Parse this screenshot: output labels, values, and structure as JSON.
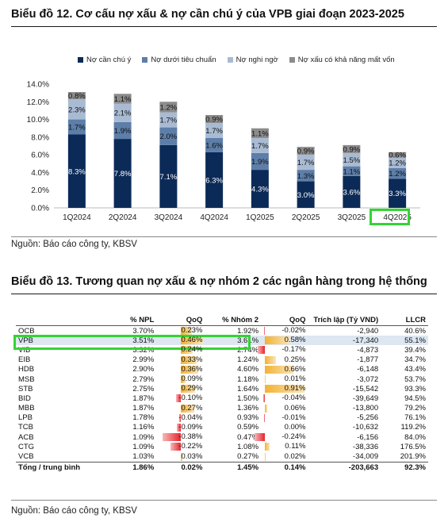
{
  "chart12": {
    "title": "Biểu đồ 12. Cơ cấu nợ xấu & nợ cần chú ý của VPB giai đoạn 2023-2025",
    "source": "Nguồn: Báo cáo công ty, KBSV"
  },
  "chart13": {
    "title": "Biểu đồ 13. Tương quan nợ xấu & nợ nhóm 2 các ngân hàng trong hệ thống",
    "source": "Nguồn: Báo cáo công ty, KBSV"
  },
  "chart_data": [
    {
      "type": "bar",
      "stacked": true,
      "categories": [
        "1Q2024",
        "2Q2024",
        "3Q2024",
        "4Q2024",
        "1Q2025",
        "2Q2025",
        "3Q2025",
        "4Q2025"
      ],
      "series": [
        {
          "name": "Nợ cần chú ý",
          "values": [
            8.3,
            7.8,
            7.1,
            6.3,
            4.3,
            3.0,
            3.6,
            3.3
          ],
          "labels": [
            "8.3%",
            "7.8%",
            "7.1%",
            "6.3%",
            "4.3%",
            "3.0%",
            "3.6%",
            "3.3%"
          ],
          "color": "#0b2a57"
        },
        {
          "name": "Nợ dưới tiêu chuẩn",
          "values": [
            1.7,
            1.9,
            2.0,
            1.6,
            1.9,
            1.3,
            1.1,
            1.2
          ],
          "labels": [
            "1.7%",
            "1.9%",
            "2.0%",
            "1.6%",
            "1.9%",
            "1.3%",
            "1.1%",
            "1.2%"
          ],
          "color": "#5d7ea8"
        },
        {
          "name": "Nợ nghi ngờ",
          "values": [
            2.3,
            2.1,
            1.7,
            1.7,
            1.7,
            1.7,
            1.5,
            1.2
          ],
          "labels": [
            "2.3%",
            "2.1%",
            "1.7%",
            "1.7%",
            "1.7%",
            "1.7%",
            "1.5%",
            "1.2%"
          ],
          "color": "#a9bbd3"
        },
        {
          "name": "Nợ xấu có khả năng mất vốn",
          "values": [
            0.8,
            1.1,
            1.2,
            0.9,
            1.1,
            0.9,
            0.9,
            0.6
          ],
          "labels": [
            "0.8%",
            "1.1%",
            "1.2%",
            "0.9%",
            "1.1%",
            "0.9%",
            "0.9%",
            "0.6%"
          ],
          "color": "#8c8c8c"
        }
      ],
      "ylim": [
        0,
        14
      ],
      "yticks": [
        "0.0%",
        "2.0%",
        "4.0%",
        "6.0%",
        "8.0%",
        "10.0%",
        "12.0%",
        "14.0%"
      ],
      "highlight_category": "4Q2025",
      "legend_position": "top",
      "grid": false
    },
    {
      "type": "table",
      "columns": [
        "",
        "% NPL",
        "QoQ",
        "% Nhóm 2",
        "QoQ",
        "Trích lập (Tỷ VND)",
        "LLCR"
      ],
      "rows": [
        {
          "bank": "OCB",
          "npl": "3.70%",
          "npl_qoq": "0.23%",
          "g2": "1.92%",
          "g2_qoq": "-0.02%",
          "prov": "-2,940",
          "llcr": "40.6%",
          "npl_qoq_v": 0.23,
          "g2_qoq_v": -0.02
        },
        {
          "bank": "VPB",
          "npl": "3.51%",
          "npl_qoq": "0.46%",
          "g2": "3.61%",
          "g2_qoq": "0.58%",
          "prov": "-17,340",
          "llcr": "55.1%",
          "npl_qoq_v": 0.46,
          "g2_qoq_v": 0.58
        },
        {
          "bank": "VIB",
          "npl": "3.32%",
          "npl_qoq": "0.24%",
          "g2": "2.74%",
          "g2_qoq": "-0.17%",
          "prov": "-4,873",
          "llcr": "39.4%",
          "npl_qoq_v": 0.24,
          "g2_qoq_v": -0.17
        },
        {
          "bank": "EIB",
          "npl": "2.99%",
          "npl_qoq": "0.33%",
          "g2": "1.24%",
          "g2_qoq": "0.25%",
          "prov": "-1,877",
          "llcr": "34.7%",
          "npl_qoq_v": 0.33,
          "g2_qoq_v": 0.25
        },
        {
          "bank": "HDB",
          "npl": "2.90%",
          "npl_qoq": "0.36%",
          "g2": "4.60%",
          "g2_qoq": "0.66%",
          "prov": "-6,148",
          "llcr": "43.4%",
          "npl_qoq_v": 0.36,
          "g2_qoq_v": 0.66
        },
        {
          "bank": "MSB",
          "npl": "2.79%",
          "npl_qoq": "0.09%",
          "g2": "1.18%",
          "g2_qoq": "0.01%",
          "prov": "-3,072",
          "llcr": "53.7%",
          "npl_qoq_v": 0.09,
          "g2_qoq_v": 0.01
        },
        {
          "bank": "STB",
          "npl": "2.75%",
          "npl_qoq": "0.29%",
          "g2": "1.64%",
          "g2_qoq": "0.91%",
          "prov": "-15,542",
          "llcr": "93.3%",
          "npl_qoq_v": 0.29,
          "g2_qoq_v": 0.91
        },
        {
          "bank": "BID",
          "npl": "1.87%",
          "npl_qoq": "-0.10%",
          "g2": "1.50%",
          "g2_qoq": "-0.04%",
          "prov": "-39,649",
          "llcr": "94.5%",
          "npl_qoq_v": -0.1,
          "g2_qoq_v": -0.04
        },
        {
          "bank": "MBB",
          "npl": "1.87%",
          "npl_qoq": "0.27%",
          "g2": "1.36%",
          "g2_qoq": "0.06%",
          "prov": "-13,800",
          "llcr": "79.2%",
          "npl_qoq_v": 0.27,
          "g2_qoq_v": 0.06
        },
        {
          "bank": "LPB",
          "npl": "1.78%",
          "npl_qoq": "-0.04%",
          "g2": "0.93%",
          "g2_qoq": "-0.01%",
          "prov": "-5,256",
          "llcr": "76.1%",
          "npl_qoq_v": -0.04,
          "g2_qoq_v": -0.01
        },
        {
          "bank": "TCB",
          "npl": "1.16%",
          "npl_qoq": "-0.09%",
          "g2": "0.59%",
          "g2_qoq": "0.00%",
          "prov": "-10,632",
          "llcr": "119.2%",
          "npl_qoq_v": -0.09,
          "g2_qoq_v": 0.0
        },
        {
          "bank": "ACB",
          "npl": "1.09%",
          "npl_qoq": "-0.38%",
          "g2": "0.47%",
          "g2_qoq": "-0.24%",
          "prov": "-6,156",
          "llcr": "84.0%",
          "npl_qoq_v": -0.38,
          "g2_qoq_v": -0.24
        },
        {
          "bank": "CTG",
          "npl": "1.09%",
          "npl_qoq": "-0.22%",
          "g2": "1.08%",
          "g2_qoq": "0.11%",
          "prov": "-38,336",
          "llcr": "176.5%",
          "npl_qoq_v": -0.22,
          "g2_qoq_v": 0.11
        },
        {
          "bank": "VCB",
          "npl": "1.03%",
          "npl_qoq": "0.03%",
          "g2": "0.27%",
          "g2_qoq": "0.02%",
          "prov": "-34,009",
          "llcr": "201.9%",
          "npl_qoq_v": 0.03,
          "g2_qoq_v": 0.02
        }
      ],
      "total": {
        "bank": "Tổng / trung bình",
        "npl": "1.86%",
        "npl_qoq": "0.02%",
        "g2": "1.45%",
        "g2_qoq": "0.14%",
        "prov": "-203,663",
        "llcr": "92.3%"
      },
      "highlight_row": "VPB",
      "colors": {
        "positive": "#f2b233",
        "negative": "#e8222b",
        "highlight_bg": "#dde6f1"
      }
    }
  ]
}
